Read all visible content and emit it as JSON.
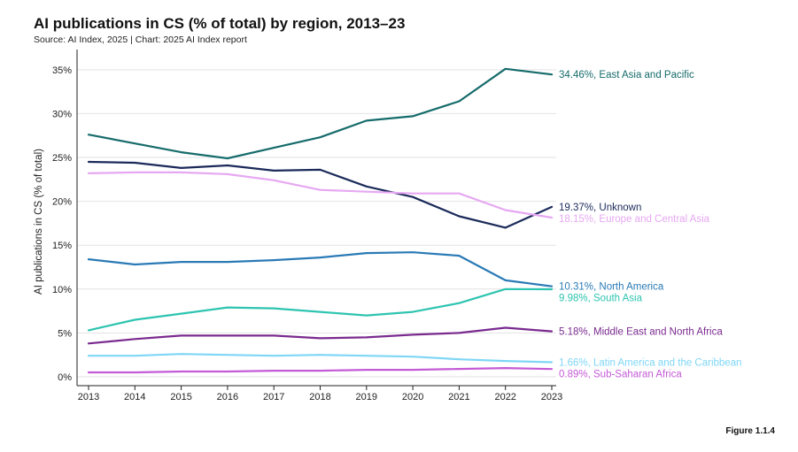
{
  "header": {
    "title": "AI publications in CS (% of total) by region, 2013–23",
    "source": "Source: AI Index, 2025 | Chart: 2025 AI Index report"
  },
  "footer": {
    "figure": "Figure 1.1.4"
  },
  "chart_data": {
    "type": "line",
    "title": "AI publications in CS (% of total) by region, 2013–23",
    "xlabel": "",
    "ylabel": "AI publications in CS (% of total)",
    "x": [
      2013,
      2014,
      2015,
      2016,
      2017,
      2018,
      2019,
      2020,
      2021,
      2022,
      2023
    ],
    "x_tick_labels": [
      "2013",
      "2014",
      "2015",
      "2016",
      "2017",
      "2018",
      "2019",
      "2020",
      "2021",
      "2022",
      "2023"
    ],
    "ylim": [
      0,
      37
    ],
    "y_ticks": [
      0,
      5,
      10,
      15,
      20,
      25,
      30,
      35
    ],
    "y_tick_labels": [
      "0%",
      "5%",
      "10%",
      "15%",
      "20%",
      "25%",
      "30%",
      "35%"
    ],
    "grid": "horizontal",
    "series": [
      {
        "name": "East Asia and Pacific",
        "color": "#166b6b",
        "values": [
          27.6,
          26.6,
          25.6,
          24.9,
          26.1,
          27.3,
          29.2,
          29.7,
          31.4,
          35.1,
          34.46
        ],
        "label": "34.46%, East Asia and Pacific"
      },
      {
        "name": "Unknown",
        "color": "#1b2a5a",
        "values": [
          24.5,
          24.4,
          23.8,
          24.1,
          23.5,
          23.6,
          21.7,
          20.5,
          18.3,
          17.0,
          19.37
        ],
        "label": "19.37%, Unknown"
      },
      {
        "name": "Europe and Central Asia",
        "color": "#e6a8f2",
        "values": [
          23.2,
          23.3,
          23.3,
          23.1,
          22.4,
          21.3,
          21.1,
          20.9,
          20.9,
          19.0,
          18.15
        ],
        "label": "18.15%, Europe and Central Asia"
      },
      {
        "name": "North America",
        "color": "#2a7ab6",
        "values": [
          13.4,
          12.8,
          13.1,
          13.1,
          13.3,
          13.6,
          14.1,
          14.2,
          13.8,
          11.0,
          10.31
        ],
        "label": "10.31%, North America"
      },
      {
        "name": "South Asia",
        "color": "#2ec4b0",
        "values": [
          5.3,
          6.5,
          7.2,
          7.9,
          7.8,
          7.4,
          7.0,
          7.4,
          8.4,
          10.0,
          9.98
        ],
        "label": "9.98%, South Asia"
      },
      {
        "name": "Middle East and North Africa",
        "color": "#7a2a8f",
        "values": [
          3.8,
          4.3,
          4.7,
          4.7,
          4.7,
          4.4,
          4.5,
          4.8,
          5.0,
          5.6,
          5.18
        ],
        "label": "5.18%, Middle East and North Africa"
      },
      {
        "name": "Latin America and the Caribbean",
        "color": "#7fd6f5",
        "values": [
          2.4,
          2.4,
          2.6,
          2.5,
          2.4,
          2.5,
          2.4,
          2.3,
          2.0,
          1.8,
          1.66
        ],
        "label": "1.66%, Latin America and the Caribbean"
      },
      {
        "name": "Sub-Saharan Africa",
        "color": "#c45ad6",
        "values": [
          0.5,
          0.5,
          0.6,
          0.6,
          0.7,
          0.7,
          0.8,
          0.8,
          0.9,
          1.0,
          0.89
        ],
        "label": "0.89%, Sub-Saharan Africa"
      }
    ]
  }
}
